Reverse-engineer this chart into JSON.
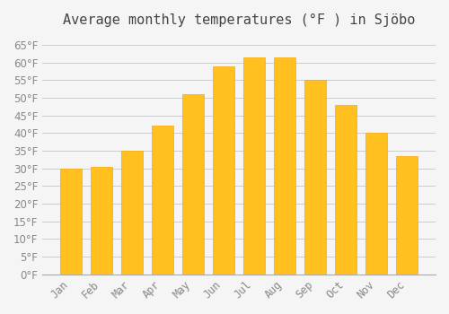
{
  "title": "Average monthly temperatures (°F ) in Sjöbo",
  "months": [
    "Jan",
    "Feb",
    "Mar",
    "Apr",
    "May",
    "Jun",
    "Jul",
    "Aug",
    "Sep",
    "Oct",
    "Nov",
    "Dec"
  ],
  "values": [
    30,
    30.5,
    35,
    42,
    51,
    59,
    61.5,
    61.5,
    55,
    48,
    40,
    33.5
  ],
  "bar_color": "#FFC020",
  "bar_edge_color": "#FFA500",
  "background_color": "#F5F5F5",
  "grid_color": "#CCCCCC",
  "text_color": "#888888",
  "ylim": [
    0,
    68
  ],
  "yticks": [
    0,
    5,
    10,
    15,
    20,
    25,
    30,
    35,
    40,
    45,
    50,
    55,
    60,
    65
  ],
  "title_fontsize": 11,
  "tick_fontsize": 8.5
}
